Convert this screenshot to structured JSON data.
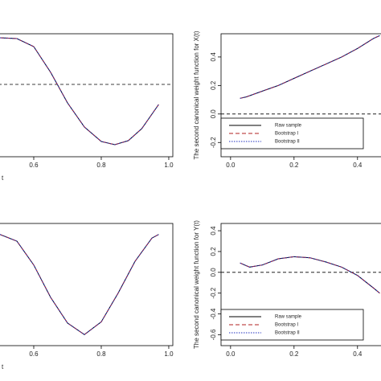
{
  "chart_data": [
    {
      "type": "line",
      "xlabel": "t",
      "xlim": [
        0.5,
        1.012
      ],
      "xticks": [
        0.6,
        0.8,
        {
          "value": 1.0,
          "label": "1.0"
        }
      ],
      "ylim": [
        -0.9,
        0.63
      ],
      "hline": 0,
      "x": [
        0.5,
        0.55,
        0.6,
        0.65,
        0.7,
        0.75,
        0.8,
        0.84,
        0.88,
        0.92,
        0.97
      ],
      "series": [
        {
          "color": "#000000",
          "style": "solid",
          "values": [
            0.58,
            0.57,
            0.47,
            0.15,
            -0.23,
            -0.53,
            -0.71,
            -0.75,
            -0.7,
            -0.55,
            -0.25
          ]
        },
        {
          "color": "#b22222",
          "style": "dashed",
          "values": [
            0.58,
            0.57,
            0.47,
            0.15,
            -0.23,
            -0.53,
            -0.71,
            -0.75,
            -0.7,
            -0.55,
            -0.25
          ]
        },
        {
          "color": "#1f2fbf",
          "style": "dotted",
          "values": [
            0.58,
            0.57,
            0.47,
            0.15,
            -0.23,
            -0.53,
            -0.71,
            -0.75,
            -0.7,
            -0.55,
            -0.25
          ]
        }
      ]
    },
    {
      "type": "line",
      "ylabel": "The second canonical weight function for X(t)",
      "xlim": [
        -0.03,
        0.474
      ],
      "xticks": [
        {
          "value": 0,
          "label": "0.0"
        },
        0.2,
        0.4
      ],
      "ylim": [
        -0.3,
        0.563
      ],
      "yticks": [
        -0.2,
        {
          "value": 0,
          "label": "0.0"
        },
        0.2,
        0.4
      ],
      "hline": 0,
      "legend": "lower left",
      "x": [
        0.03,
        0.05,
        0.1,
        0.15,
        0.2,
        0.25,
        0.3,
        0.35,
        0.4,
        0.45,
        0.47
      ],
      "series": [
        {
          "name": "Raw sample",
          "color": "#000000",
          "style": "solid",
          "values": [
            0.11,
            0.12,
            0.16,
            0.2,
            0.25,
            0.3,
            0.35,
            0.4,
            0.46,
            0.53,
            0.55
          ]
        },
        {
          "name": "Bootstrap I",
          "color": "#b22222",
          "style": "dashed",
          "values": [
            0.11,
            0.12,
            0.16,
            0.2,
            0.25,
            0.3,
            0.35,
            0.4,
            0.46,
            0.53,
            0.55
          ]
        },
        {
          "name": "Bootstrap II",
          "color": "#1f2fbf",
          "style": "dotted",
          "values": [
            0.11,
            0.12,
            0.16,
            0.2,
            0.25,
            0.3,
            0.35,
            0.4,
            0.46,
            0.53,
            0.55
          ]
        }
      ]
    },
    {
      "type": "line",
      "xlabel": "t",
      "xlim": [
        0.5,
        1.012
      ],
      "xticks": [
        0.6,
        0.8,
        {
          "value": 1.0,
          "label": "1.0"
        }
      ],
      "ylim": [
        -1,
        1
      ],
      "x": [
        0.5,
        0.55,
        0.6,
        0.65,
        0.7,
        0.75,
        0.8,
        0.85,
        0.9,
        0.95,
        0.97
      ],
      "series": [
        {
          "color": "#000000",
          "style": "solid",
          "values": [
            0.82,
            0.71,
            0.32,
            -0.21,
            -0.63,
            -0.82,
            -0.61,
            -0.14,
            0.38,
            0.76,
            0.82
          ]
        },
        {
          "color": "#b22222",
          "style": "dashed",
          "values": [
            0.82,
            0.71,
            0.32,
            -0.21,
            -0.63,
            -0.82,
            -0.61,
            -0.14,
            0.38,
            0.76,
            0.82
          ]
        },
        {
          "color": "#1f2fbf",
          "style": "dotted",
          "values": [
            0.82,
            0.71,
            0.32,
            -0.21,
            -0.63,
            -0.82,
            -0.61,
            -0.14,
            0.38,
            0.76,
            0.82
          ]
        }
      ]
    },
    {
      "type": "line",
      "ylabel": "The second canonical weight function for Y(t)",
      "xlim": [
        -0.03,
        0.474
      ],
      "xticks": [
        {
          "value": 0,
          "label": "0.0"
        },
        0.2,
        0.4
      ],
      "ylim": [
        -0.705,
        0.47
      ],
      "yticks": [
        -0.6,
        -0.4,
        -0.2,
        {
          "value": 0,
          "label": "0.0"
        },
        0.2,
        0.4
      ],
      "hline": 0,
      "legend": "lower left",
      "x": [
        0.03,
        0.06,
        0.1,
        0.15,
        0.2,
        0.25,
        0.3,
        0.35,
        0.4,
        0.45,
        0.47
      ],
      "series": [
        {
          "name": "Raw sample",
          "color": "#000000",
          "style": "solid",
          "values": [
            0.09,
            0.05,
            0.07,
            0.13,
            0.15,
            0.14,
            0.1,
            0.05,
            -0.03,
            -0.15,
            -0.2
          ]
        },
        {
          "name": "Bootstrap I",
          "color": "#b22222",
          "style": "dashed",
          "values": [
            0.09,
            0.05,
            0.07,
            0.13,
            0.15,
            0.14,
            0.1,
            0.05,
            -0.03,
            -0.15,
            -0.2
          ]
        },
        {
          "name": "Bootstrap II",
          "color": "#1f2fbf",
          "style": "dotted",
          "values": [
            0.09,
            0.05,
            0.07,
            0.13,
            0.15,
            0.14,
            0.1,
            0.05,
            -0.03,
            -0.15,
            -0.2
          ]
        }
      ]
    }
  ]
}
